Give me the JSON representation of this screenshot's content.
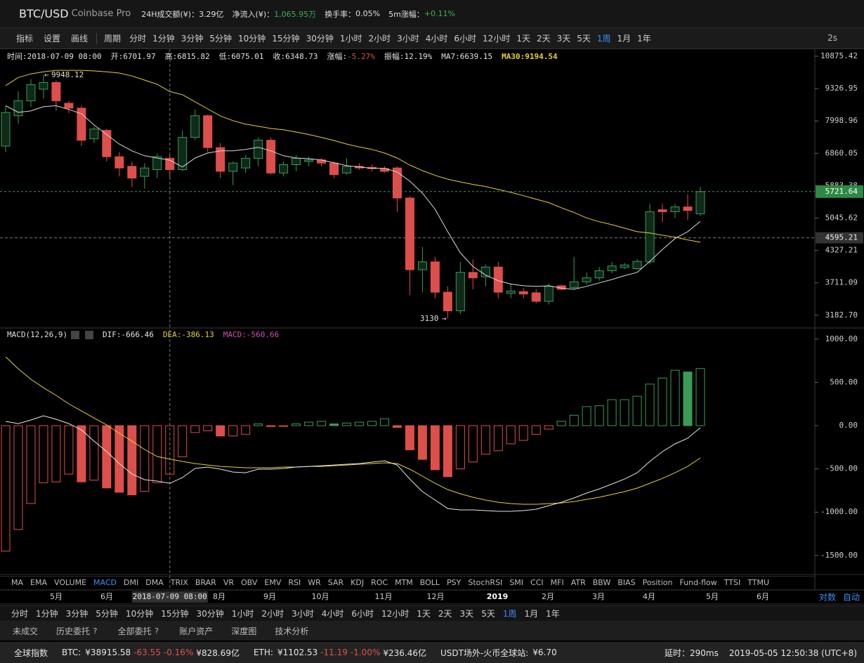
{
  "header": {
    "pair": "BTC/USD",
    "exchange": "Coinbase Pro",
    "stats": [
      {
        "label": "24H成交额(¥)：",
        "value": "3.29亿"
      },
      {
        "label": "净流入(¥)：",
        "value": "1,065.95万",
        "color": "#35b357"
      },
      {
        "label": "换手率：",
        "value": "0.05%"
      },
      {
        "label": "5m涨幅：",
        "value": "+0.11%",
        "color": "#35b357"
      }
    ]
  },
  "toolbar": {
    "tools": [
      "指标",
      "设置",
      "画线"
    ],
    "period_label": "周期",
    "periods": [
      "分时",
      "1分钟",
      "3分钟",
      "5分钟",
      "10分钟",
      "15分钟",
      "30分钟",
      "1小时",
      "2小时",
      "3小时",
      "4小时",
      "6小时",
      "12小时",
      "1天",
      "2天",
      "3天",
      "5天",
      "1周",
      "1月",
      "1年"
    ],
    "active": "1周",
    "refresh": "2s"
  },
  "info": {
    "time": "时间:",
    "open": "开:",
    "high": "高:",
    "low": "低:",
    "close": "收:",
    "change": "涨幅:",
    "change_value": "-5.27%",
    "amplitude": "振幅:",
    "amplitude_value": "12.19%",
    "ma7": "MA7:",
    "ma30": "MA30:"
  },
  "chart": {
    "log_scale": true,
    "ylim": [
      3016,
      11244
    ],
    "yticks": [
      10875.42,
      9326.95,
      7998.96,
      6860.05,
      5883.38,
      5045.62,
      4327.21,
      3711.09,
      {
        "value": 3182.7,
        "label": "3182.70"
      }
    ],
    "up_color": "#3a9b57",
    "down_color": "#dd4f4b",
    "ma7_color": "#d9d9d9",
    "ma30_color": "#e3d130",
    "candles": {
      "open": [
        7100,
        8200,
        8800,
        9300,
        9600,
        8700,
        8500,
        7350,
        7650,
        6750,
        6450,
        6150,
        6350,
        6701.97,
        6350,
        7400,
        8200,
        7050,
        6300,
        6400,
        6700,
        7300,
        6250,
        6500,
        6600,
        6650,
        6550,
        6250,
        6450,
        6420,
        6380,
        6400,
        5550,
        3950,
        4100,
        3550,
        3250,
        3900,
        3820,
        4000,
        3530,
        3560,
        3540,
        3400,
        3660,
        3630,
        3730,
        3800,
        3930,
        3990,
        3970,
        4100,
        5250,
        5200,
        5320,
        5150
      ],
      "high": [
        8600,
        9200,
        9750,
        9948.12,
        9700,
        8800,
        8600,
        7800,
        7700,
        6900,
        6600,
        6550,
        6850,
        6815.82,
        7650,
        8450,
        8250,
        7200,
        6600,
        6800,
        7400,
        7400,
        6600,
        6800,
        6750,
        6700,
        6600,
        6700,
        6550,
        6500,
        6450,
        6450,
        5600,
        4400,
        4200,
        3650,
        4100,
        4150,
        4050,
        4100,
        3700,
        3620,
        3600,
        3700,
        3680,
        4200,
        3900,
        4000,
        4100,
        4080,
        4150,
        5400,
        5400,
        5400,
        5650,
        5850
      ],
      "low": [
        6900,
        7900,
        8550,
        8900,
        8400,
        8300,
        7100,
        7200,
        6600,
        6150,
        5850,
        5800,
        6100,
        6075.01,
        6300,
        7300,
        6900,
        6100,
        5900,
        6250,
        6450,
        6200,
        6150,
        6300,
        6450,
        6450,
        6100,
        6200,
        6350,
        6300,
        6250,
        5200,
        3500,
        3550,
        3450,
        3130,
        3200,
        3600,
        3650,
        3450,
        3450,
        3450,
        3370,
        3350,
        3580,
        3600,
        3680,
        3750,
        3880,
        3960,
        3950,
        4050,
        4950,
        5050,
        5000,
        5100
      ],
      "close": [
        8330,
        8800,
        9500,
        9600,
        8800,
        8500,
        7300,
        7700,
        6750,
        6400,
        6100,
        6400,
        6750,
        6348.73,
        7400,
        8200,
        7050,
        6300,
        6550,
        6700,
        7300,
        6250,
        6500,
        6700,
        6650,
        6550,
        6200,
        6450,
        6400,
        6380,
        6300,
        5550,
        3950,
        4100,
        3550,
        3250,
        3900,
        3800,
        4000,
        3550,
        3570,
        3520,
        3400,
        3650,
        3600,
        3730,
        3800,
        3930,
        4020,
        4040,
        4110,
        5200,
        5200,
        5320,
        5230,
        5721.64
      ]
    },
    "ma7": [
      8600,
      8330,
      8390,
      8560,
      8600,
      8450,
      8280,
      7850,
      7500,
      7170,
      6940,
      6780,
      6710,
      6639.15,
      6430,
      6710,
      6870,
      6940,
      6940,
      6990,
      7060,
      6940,
      6780,
      6710,
      6690,
      6650,
      6560,
      6470,
      6430,
      6390,
      6390,
      6280,
      6010,
      5680,
      5260,
      4730,
      4280,
      4010,
      3850,
      3750,
      3690,
      3660,
      3650,
      3660,
      3620,
      3600,
      3650,
      3710,
      3770,
      3840,
      3900,
      4110,
      4350,
      4580,
      4730,
      4970
    ],
    "ma30": [
      9460,
      9830,
      10000,
      10100,
      10170,
      10170,
      10170,
      10140,
      10100,
      10040,
      9900,
      9710,
      9520,
      9194.54,
      9060,
      8760,
      8470,
      8190,
      8010,
      7880,
      7800,
      7720,
      7670,
      7590,
      7500,
      7400,
      7290,
      7170,
      7070,
      6990,
      6870,
      6710,
      6490,
      6320,
      6180,
      6070,
      5990,
      5920,
      5860,
      5780,
      5700,
      5610,
      5520,
      5430,
      5300,
      5180,
      5050,
      4960,
      4890,
      4810,
      4730,
      4700,
      4650,
      4610,
      4550,
      4500
    ],
    "crosshair": {
      "time": "2018-07-09 08:00",
      "price": 4595.21
    }
  },
  "macd": {
    "title": "MACD(12,26,9)",
    "dif_label": "DIF:",
    "dea_label": "DEA:",
    "macd_label": "MACD:",
    "dif_color": "#e6e6e6",
    "dea_color": "#e3d130",
    "macd_color": "#d04fb0",
    "up_color": "#3a9b57",
    "down_color": "#dd4f4b",
    "ylim": [
      -1696,
      1104
    ],
    "yticks": [
      {
        "value": 1000,
        "label": "1000.00"
      },
      {
        "value": 500,
        "label": "500.00"
      },
      {
        "value": 0,
        "label": "0.00"
      },
      {
        "value": -500,
        "label": "-500.00"
      },
      {
        "value": -1000,
        "label": "-1000.00"
      },
      {
        "value": -1500,
        "label": "-1500.00"
      }
    ],
    "hist": [
      -1450,
      -1200,
      -900,
      -660,
      -650,
      -560,
      -650,
      -630,
      -720,
      -770,
      -800,
      -760,
      -660,
      -560.66,
      -360,
      -80,
      -60,
      -120,
      -120,
      -100,
      20,
      -10,
      -10,
      20,
      40,
      50,
      20,
      30,
      40,
      50,
      80,
      -20,
      -280,
      -390,
      -510,
      -590,
      -500,
      -420,
      -330,
      -290,
      -210,
      -170,
      -100,
      -40,
      50,
      120,
      220,
      230,
      300,
      300,
      340,
      480,
      550,
      640,
      620,
      660
    ],
    "dif": [
      49,
      24,
      65,
      114,
      73,
      24,
      -49,
      -179,
      -300,
      -438,
      -560,
      -625,
      -641,
      -666.46,
      -600,
      -495,
      -479,
      -503,
      -536,
      -544,
      -503,
      -503,
      -495,
      -479,
      -471,
      -463,
      -455,
      -446,
      -438,
      -422,
      -406,
      -455,
      -617,
      -763,
      -860,
      -958,
      -974,
      -974,
      -982,
      -990,
      -990,
      -982,
      -966,
      -925,
      -885,
      -836,
      -779,
      -731,
      -674,
      -617,
      -544,
      -414,
      -300,
      -211,
      -146,
      -24
    ],
    "dea": [
      795,
      657,
      536,
      438,
      349,
      252,
      170,
      89,
      8,
      -89,
      -179,
      -276,
      -357,
      -386.13,
      -414,
      -438,
      -455,
      -471,
      -479,
      -487,
      -487,
      -487,
      -479,
      -479,
      -471,
      -471,
      -463,
      -455,
      -446,
      -438,
      -430,
      -438,
      -503,
      -584,
      -666,
      -739,
      -787,
      -828,
      -860,
      -885,
      -901,
      -909,
      -909,
      -901,
      -893,
      -877,
      -852,
      -828,
      -795,
      -763,
      -722,
      -666,
      -609,
      -544,
      -471,
      -373
    ]
  },
  "indicators": {
    "items": [
      "MA",
      "EMA",
      "VOLUME",
      "MACD",
      "DMI",
      "DMA",
      "TRIX",
      "BRAR",
      "VR",
      "OBV",
      "EMV",
      "RSI",
      "WR",
      "SAR",
      "KDJ",
      "ROC",
      "MTM",
      "BOLL",
      "PSY",
      "StochRSI",
      "SMI",
      "CCI",
      "MFI",
      "ATR",
      "BBW",
      "BIAS",
      "Position",
      "Fund-flow",
      "TTSI",
      "TTMU"
    ],
    "active": "MACD"
  },
  "time_axis": {
    "labels": [
      "5月",
      "6月",
      "8月",
      "9月",
      "10月",
      "11月",
      "12月",
      "2019",
      "2月",
      "3月",
      "4月",
      "5月",
      "6月"
    ],
    "scale_buttons": [
      "对数",
      "自动"
    ]
  },
  "bottom_periods": {
    "periods": [
      "分时",
      "1分钟",
      "3分钟",
      "5分钟",
      "10分钟",
      "15分钟",
      "30分钟",
      "1小时",
      "2小时",
      "3小时",
      "4小时",
      "6小时",
      "12小时",
      "1天",
      "2天",
      "3天",
      "5天",
      "1周",
      "1月",
      "1年"
    ],
    "active": "1周"
  },
  "tabs": [
    "未成交",
    "历史委托",
    "全部委托",
    "账户资产",
    "深度图",
    "技术分析"
  ],
  "footer": {
    "title": "全球指数",
    "markets": [
      {
        "label": "BTC:",
        "price": "¥38915.58",
        "change": "-63.55",
        "percent": "-0.16%",
        "volume": "¥828.69亿"
      },
      {
        "label": "ETH:",
        "price": "¥1102.53",
        "change": "-11.19",
        "percent": "-1.00%",
        "volume": "¥236.46亿"
      },
      {
        "label": "USDT场外-火币全球站:",
        "price": "¥6.70"
      }
    ],
    "latency_label": "延时：",
    "latency": "290ms",
    "clock": "2019-05-05 12:50:38 (UTC+8)"
  }
}
